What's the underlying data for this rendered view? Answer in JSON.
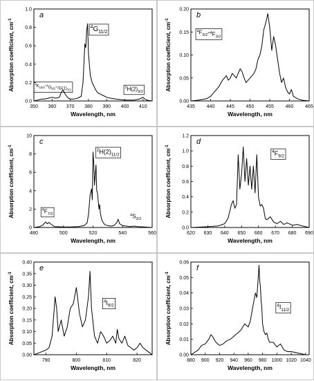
{
  "chart_data": [
    {
      "id": "a",
      "type": "line",
      "panel_letter": "a",
      "xlabel": "Wavelength, nm",
      "ylabel": "Absorption coefficient, cm",
      "ylabel_sup": "-1",
      "xlim": [
        350,
        415
      ],
      "ylim": [
        0,
        1.0
      ],
      "xticks": [
        350,
        360,
        370,
        380,
        390,
        400,
        410
      ],
      "yticks": [
        0.0,
        0.2,
        0.4,
        0.6,
        0.8,
        1.0
      ],
      "ytick_labels": [
        "0.0",
        "0.2",
        "0.4",
        "0.6",
        "0.8",
        "1.0"
      ],
      "series": [
        {
          "x": [
            350,
            352,
            354,
            356,
            358,
            360,
            362,
            364,
            365,
            366,
            367,
            368,
            369,
            370,
            372,
            374,
            376,
            377,
            378,
            378.5,
            379,
            379.5,
            380,
            380.5,
            381,
            382,
            383,
            384,
            385,
            386,
            388,
            390,
            392,
            395,
            400,
            405,
            408,
            409,
            410,
            411,
            412,
            415
          ],
          "y": [
            0.0,
            0.01,
            0.02,
            0.02,
            0.03,
            0.04,
            0.03,
            0.04,
            0.09,
            0.12,
            0.08,
            0.05,
            0.03,
            0.02,
            0.02,
            0.03,
            0.05,
            0.2,
            0.62,
            0.58,
            0.76,
            0.84,
            0.52,
            0.4,
            0.28,
            0.2,
            0.16,
            0.12,
            0.09,
            0.08,
            0.06,
            0.04,
            0.03,
            0.02,
            0.01,
            0.01,
            0.02,
            0.03,
            0.04,
            0.02,
            0.01,
            0.0
          ]
        }
      ],
      "annotations": [
        {
          "x": 381,
          "y": 0.76,
          "parts": [
            [
              "",
              "4",
              "G"
            ],
            [
              "sub",
              "11/2"
            ]
          ],
          "size": 10,
          "box": true
        },
        {
          "x": 350.5,
          "y": 0.15,
          "parts": [
            [
              "",
              "4",
              "K"
            ],
            [
              "sub",
              "15/2"
            ],
            [
              "",
              "+4",
              "G"
            ],
            [
              "sub",
              "9/2"
            ],
            [
              "",
              "+2",
              "G(1)"
            ],
            [
              "sub",
              "7/2"
            ]
          ],
          "size": 6,
          "box": true
        },
        {
          "x": 400,
          "y": 0.11,
          "parts": [
            [
              "",
              "2",
              "H(2)"
            ],
            [
              "sub",
              "9/2"
            ]
          ],
          "size": 8,
          "box": true
        }
      ]
    },
    {
      "id": "b",
      "type": "line",
      "panel_letter": "b",
      "xlabel": "Wavelength, nm",
      "ylabel": "Absorption coefficient, cm",
      "ylabel_sup": "-1",
      "xlim": [
        435,
        465
      ],
      "ylim": [
        0,
        0.2
      ],
      "xticks": [
        435,
        440,
        445,
        450,
        455,
        460,
        465
      ],
      "yticks": [
        0.0,
        0.05,
        0.1,
        0.15,
        0.2
      ],
      "ytick_labels": [
        "0.00",
        "0.05",
        "0.10",
        "0.15",
        "0.20"
      ],
      "series": [
        {
          "x": [
            435,
            437,
            439,
            440,
            441,
            442,
            443,
            443.5,
            444,
            444.5,
            445,
            445.5,
            446,
            446.5,
            447,
            447.5,
            448,
            448.5,
            449,
            449.5,
            450,
            450.5,
            451,
            451.5,
            452,
            452.5,
            453,
            453.5,
            454,
            454.5,
            455,
            455.5,
            456,
            456.5,
            457,
            457.5,
            458,
            458.5,
            459,
            459.5,
            460,
            460.5,
            461,
            462,
            463,
            465
          ],
          "y": [
            0.0,
            0.002,
            0.005,
            0.01,
            0.02,
            0.03,
            0.045,
            0.05,
            0.055,
            0.045,
            0.05,
            0.06,
            0.055,
            0.05,
            0.06,
            0.07,
            0.063,
            0.05,
            0.04,
            0.045,
            0.05,
            0.055,
            0.06,
            0.07,
            0.09,
            0.1,
            0.12,
            0.155,
            0.17,
            0.19,
            0.16,
            0.11,
            0.14,
            0.12,
            0.09,
            0.06,
            0.04,
            0.05,
            0.03,
            0.02,
            0.015,
            0.025,
            0.01,
            0.005,
            0.002,
            0.0
          ]
        }
      ],
      "annotations": [
        {
          "x": 436.5,
          "y": 0.145,
          "parts": [
            [
              "",
              "4",
              "F"
            ],
            [
              "sub",
              "5/2"
            ],
            [
              "",
              "+4",
              "F"
            ],
            [
              "sub",
              "3/2"
            ]
          ],
          "size": 8,
          "box": true
        }
      ]
    },
    {
      "id": "c",
      "type": "line",
      "panel_letter": "c",
      "xlabel": "Wavelength, nm",
      "ylabel": "Absorption coefficient, cm",
      "ylabel_sup": "-1",
      "xlim": [
        480,
        560
      ],
      "ylim": [
        0,
        10
      ],
      "xticks": [
        480,
        500,
        520,
        540,
        560
      ],
      "yticks": [
        0,
        2,
        4,
        6,
        8,
        10
      ],
      "ytick_labels": [
        "0",
        "2",
        "4",
        "6",
        "8",
        "10"
      ],
      "series": [
        {
          "x": [
            480,
            484,
            486,
            487,
            488,
            489,
            490,
            492,
            494,
            500,
            505,
            510,
            514,
            516,
            517,
            518,
            519,
            519.5,
            520,
            520.5,
            521,
            522,
            522.5,
            523,
            524,
            524.5,
            525,
            526,
            527,
            528,
            530,
            532,
            534,
            536,
            537,
            538,
            540,
            545,
            548,
            550,
            555,
            560
          ],
          "y": [
            0.0,
            0.1,
            0.25,
            0.45,
            0.6,
            0.4,
            0.55,
            0.3,
            0.1,
            0.05,
            0.05,
            0.1,
            0.2,
            0.5,
            1.5,
            3.5,
            4.2,
            3.0,
            8.2,
            7.0,
            4.6,
            6.8,
            4.0,
            3.8,
            2.0,
            2.5,
            1.5,
            0.8,
            0.5,
            0.3,
            0.2,
            0.15,
            0.2,
            0.5,
            0.9,
            0.4,
            0.2,
            0.1,
            0.15,
            0.1,
            0.05,
            0.0
          ]
        }
      ],
      "annotations": [
        {
          "x": 522.5,
          "y": 8.0,
          "parts": [
            [
              "",
              "2",
              "H(2)"
            ],
            [
              "sub",
              "11/2"
            ]
          ],
          "size": 9,
          "box": true
        },
        {
          "x": 485.5,
          "y": 1.55,
          "parts": [
            [
              "",
              "4",
              "F"
            ],
            [
              "sub",
              "7/2"
            ]
          ],
          "size": 8,
          "box": true
        },
        {
          "x": 545,
          "y": 1.0,
          "parts": [
            [
              "",
              "4",
              "S"
            ],
            [
              "sub",
              "3/2"
            ]
          ],
          "size": 8,
          "box": false
        }
      ]
    },
    {
      "id": "d",
      "type": "line",
      "panel_letter": "d",
      "xlabel": "Wavelength, nm",
      "ylabel": "Absorption coefficient, cm",
      "ylabel_sup": "-1",
      "xlim": [
        620,
        690
      ],
      "ylim": [
        0,
        1.2
      ],
      "xticks": [
        620,
        630,
        640,
        650,
        660,
        670,
        680,
        690
      ],
      "yticks": [
        0.0,
        0.2,
        0.4,
        0.6,
        0.8,
        1.0,
        1.2
      ],
      "ytick_labels": [
        "0.0",
        "0.2",
        "0.4",
        "0.6",
        "0.8",
        "1.0",
        "1.2"
      ],
      "series": [
        {
          "x": [
            620,
            630,
            636,
            640,
            642,
            644,
            645,
            646,
            647,
            648,
            649,
            650,
            651,
            652,
            653,
            654,
            655,
            656,
            657,
            658,
            659,
            660,
            661,
            662,
            663,
            664,
            665,
            667,
            669,
            671,
            673,
            675,
            677,
            680,
            683,
            686,
            690
          ],
          "y": [
            0.0,
            0.01,
            0.02,
            0.05,
            0.12,
            0.3,
            0.35,
            0.25,
            0.3,
            0.95,
            0.5,
            0.7,
            1.05,
            0.6,
            0.9,
            0.55,
            0.8,
            0.5,
            0.8,
            0.45,
            0.95,
            0.4,
            0.28,
            0.3,
            0.25,
            0.12,
            0.1,
            0.14,
            0.07,
            0.05,
            0.08,
            0.04,
            0.06,
            0.03,
            0.04,
            0.02,
            0.0
          ]
        }
      ],
      "annotations": [
        {
          "x": 668,
          "y": 0.94,
          "parts": [
            [
              "",
              "4",
              "F"
            ],
            [
              "sub",
              "9/2"
            ]
          ],
          "size": 9,
          "box": true
        }
      ]
    },
    {
      "id": "e",
      "type": "line",
      "panel_letter": "e",
      "xlabel": "Wavelength, nm",
      "ylabel": "Absorption coefficient, cm",
      "ylabel_sup": "-1",
      "xlim": [
        786,
        825
      ],
      "ylim": [
        0,
        0.4
      ],
      "xticks": [
        790,
        800,
        810,
        820
      ],
      "yticks": [
        0.0,
        0.05,
        0.1,
        0.15,
        0.2,
        0.25,
        0.3,
        0.35,
        0.4
      ],
      "ytick_labels": [
        "0.00",
        "0.05",
        "0.10",
        "0.15",
        "0.20",
        "0.25",
        "0.30",
        "0.35",
        "0.40"
      ],
      "series": [
        {
          "x": [
            786,
            788,
            790,
            791,
            792,
            793,
            793.5,
            794,
            795,
            796,
            797,
            798,
            799,
            800,
            801,
            802,
            803,
            804,
            804.5,
            805,
            806,
            807,
            808,
            809,
            810,
            811,
            812,
            813,
            813.5,
            814,
            815,
            816,
            817,
            818,
            819,
            820,
            821,
            822,
            823,
            824,
            825
          ],
          "y": [
            0.0,
            0.01,
            0.02,
            0.03,
            0.08,
            0.25,
            0.2,
            0.1,
            0.15,
            0.08,
            0.12,
            0.2,
            0.22,
            0.29,
            0.18,
            0.12,
            0.15,
            0.25,
            0.36,
            0.2,
            0.08,
            0.05,
            0.1,
            0.08,
            0.05,
            0.06,
            0.08,
            0.05,
            0.11,
            0.07,
            0.05,
            0.08,
            0.04,
            0.03,
            0.02,
            0.03,
            0.05,
            0.03,
            0.02,
            0.01,
            0.0
          ]
        }
      ],
      "annotations": [
        {
          "x": 809,
          "y": 0.215,
          "parts": [
            [
              "",
              "4",
              "I"
            ],
            [
              "sub",
              "9/2"
            ]
          ],
          "size": 9,
          "box": true
        }
      ]
    },
    {
      "id": "f",
      "type": "line",
      "panel_letter": "f",
      "xlabel": "Wavelength, nm",
      "ylabel": "Absorption coefficient, cm",
      "ylabel_sup": "-1",
      "xlim": [
        880,
        1045
      ],
      "ylim": [
        0,
        0.06
      ],
      "xticks": [
        880,
        900,
        920,
        940,
        960,
        980,
        1000,
        1020,
        1040
      ],
      "yticks": [
        0.0,
        0.01,
        0.02,
        0.03,
        0.04,
        0.05,
        0.06
      ],
      "ytick_labels": [
        "0.00",
        "0.01",
        "0.02",
        "0.03",
        "0.04",
        "0.05",
        "0.06"
      ],
      "series": [
        {
          "x": [
            880,
            890,
            895,
            900,
            905,
            908,
            910,
            915,
            920,
            925,
            930,
            935,
            940,
            945,
            950,
            955,
            960,
            963,
            966,
            968,
            970,
            972,
            974,
            975,
            976,
            977,
            978,
            979,
            980,
            982,
            984,
            986,
            988,
            990,
            995,
            1000,
            1005,
            1010,
            1015,
            1020,
            1030,
            1040,
            1045
          ],
          "y": [
            0.0,
            0.003,
            0.006,
            0.007,
            0.01,
            0.013,
            0.012,
            0.008,
            0.006,
            0.007,
            0.009,
            0.01,
            0.012,
            0.014,
            0.016,
            0.02,
            0.018,
            0.022,
            0.03,
            0.035,
            0.04,
            0.037,
            0.05,
            0.058,
            0.048,
            0.044,
            0.035,
            0.03,
            0.02,
            0.015,
            0.013,
            0.014,
            0.01,
            0.008,
            0.008,
            0.005,
            0.007,
            0.003,
            0.002,
            0.002,
            0.001,
            0.0,
            0.0
          ]
        }
      ],
      "annotations": [
        {
          "x": 1000,
          "y": 0.0295,
          "parts": [
            [
              "",
              "4",
              "I"
            ],
            [
              "sub",
              "11/2"
            ]
          ],
          "size": 9,
          "box": true
        }
      ]
    }
  ]
}
